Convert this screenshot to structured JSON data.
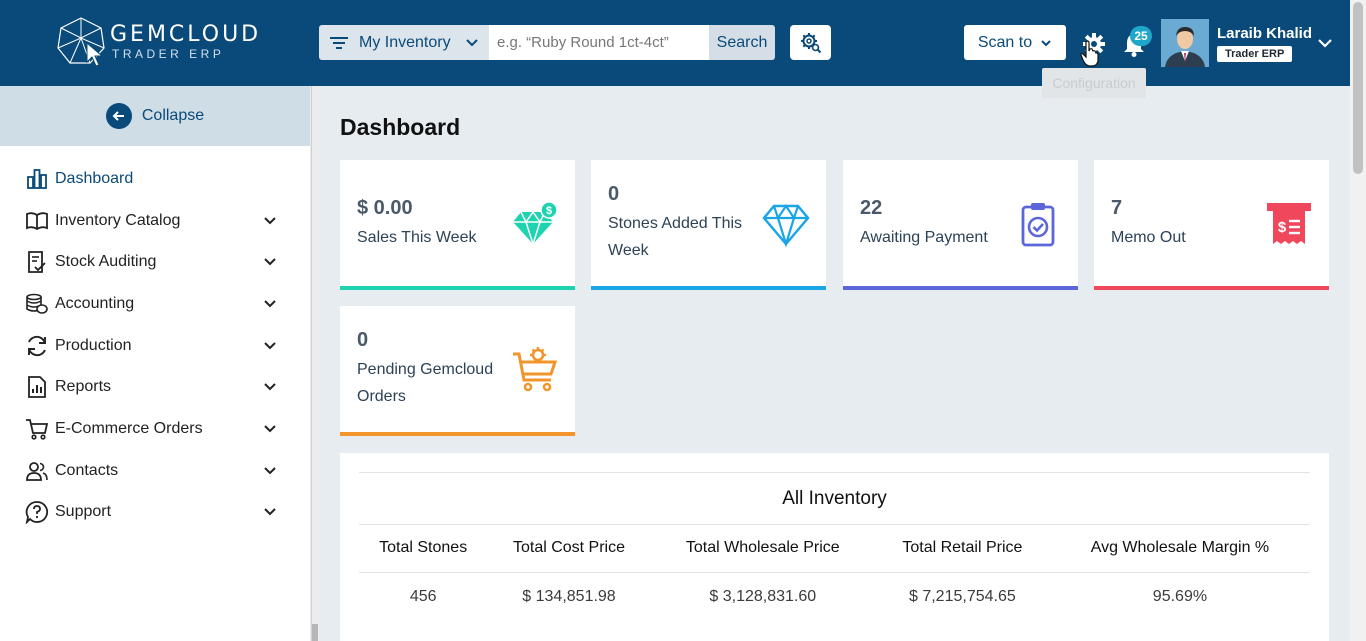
{
  "header": {
    "logo_title": "GEMCLOUD",
    "logo_subtitle": "TRADER ERP",
    "inventory_select": "My Inventory",
    "search_placeholder": "e.g. “Ruby Round 1ct-4ct”",
    "search_label": "Search",
    "scan_label": "Scan to",
    "tooltip": "Configuration",
    "notification_count": "25",
    "user_name": "Laraib Khalid",
    "user_role": "Trader ERP"
  },
  "sidebar": {
    "collapse_label": "Collapse",
    "items": [
      {
        "label": "Dashboard",
        "icon": "bar-chart-icon",
        "active": true
      },
      {
        "label": "Inventory Catalog",
        "icon": "book-icon"
      },
      {
        "label": "Stock Auditing",
        "icon": "audit-checklist-icon"
      },
      {
        "label": "Accounting",
        "icon": "coins-stack-icon"
      },
      {
        "label": "Production",
        "icon": "sync-icon"
      },
      {
        "label": "Reports",
        "icon": "report-file-icon"
      },
      {
        "label": "E-Commerce Orders",
        "icon": "cart-icon"
      },
      {
        "label": "Contacts",
        "icon": "users-icon"
      },
      {
        "label": "Support",
        "icon": "support-icon"
      }
    ]
  },
  "main": {
    "title": "Dashboard",
    "cards": [
      {
        "value": "$ 0.00",
        "label": "Sales This Week",
        "color": "#1dd3b0",
        "icon": "diamond-dollar-icon"
      },
      {
        "value": "0",
        "label": "Stones Added This Week",
        "color": "#1aa6e6",
        "icon": "diamond-icon"
      },
      {
        "value": "22",
        "label": "Awaiting Payment",
        "color": "#5b67d8",
        "icon": "clipboard-check-icon"
      },
      {
        "value": "7",
        "label": "Memo Out",
        "color": "#f0475c",
        "icon": "receipt-icon"
      },
      {
        "value": "0",
        "label": "Pending Gemcloud Orders",
        "color": "#f2962b",
        "icon": "cart-gear-icon"
      }
    ],
    "inventory": {
      "title": "All Inventory",
      "headers": [
        "Total Stones",
        "Total Cost Price",
        "Total Wholesale Price",
        "Total Retail Price",
        "Avg Wholesale Margin %"
      ],
      "values": [
        "456",
        "$ 134,851.98",
        "$ 3,128,831.60",
        "$ 7,215,754.65",
        "95.69%"
      ]
    }
  }
}
